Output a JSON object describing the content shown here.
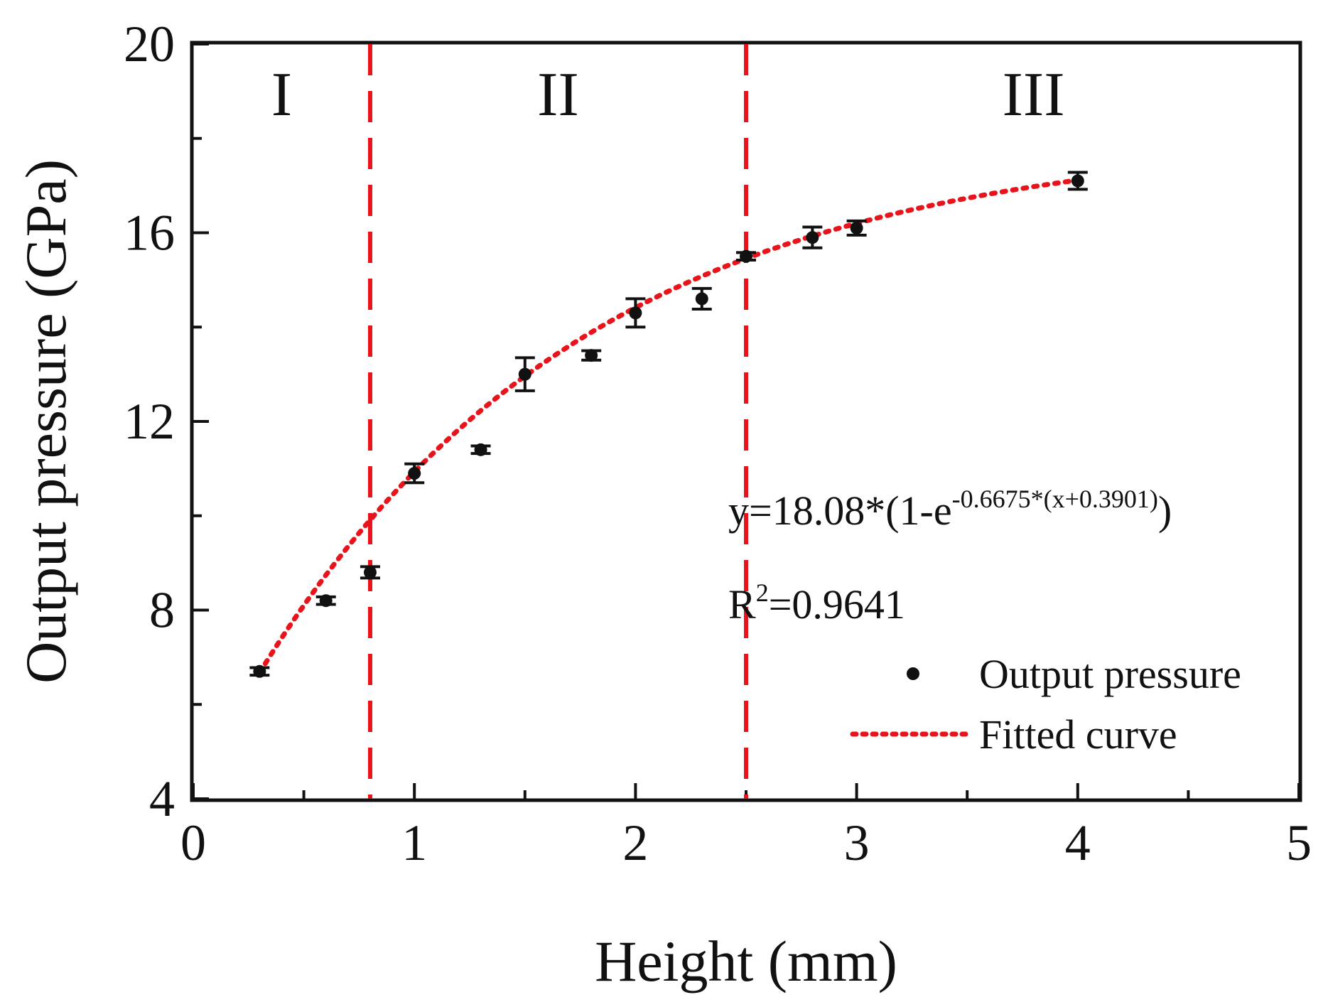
{
  "chart_data": {
    "type": "scatter",
    "xlabel": "Height (mm)",
    "ylabel": "Output pressure (GPa)",
    "xlim": [
      0,
      5
    ],
    "ylim": [
      4,
      20
    ],
    "xticks": [
      0,
      1,
      2,
      3,
      4,
      5
    ],
    "yticks": [
      4,
      8,
      12,
      16,
      20
    ],
    "xtick_labels": [
      "0",
      "1",
      "2",
      "3",
      "4",
      "5"
    ],
    "ytick_labels": [
      "4",
      "8",
      "12",
      "16",
      "20"
    ],
    "grid": false,
    "series": [
      {
        "name": "Output pressure",
        "kind": "points-with-error-bars",
        "color": "#111111",
        "x": [
          0.3,
          0.6,
          0.8,
          1.0,
          1.3,
          1.5,
          1.8,
          2.0,
          2.3,
          2.5,
          2.8,
          3.0,
          4.0
        ],
        "y": [
          6.7,
          8.2,
          8.8,
          10.9,
          11.4,
          13.0,
          13.4,
          14.3,
          14.6,
          15.5,
          15.9,
          16.1,
          17.1
        ],
        "err": [
          0.08,
          0.08,
          0.12,
          0.2,
          0.08,
          0.35,
          0.1,
          0.3,
          0.22,
          0.08,
          0.22,
          0.15,
          0.18
        ]
      },
      {
        "name": "Fitted curve",
        "kind": "dotted-line",
        "color": "#e8141b",
        "a": 18.08,
        "b": 0.6675,
        "c": 0.3901,
        "x_range": [
          0.3,
          4.0
        ]
      }
    ],
    "region_dividers": {
      "color": "#e8141b",
      "x": [
        0.8,
        2.5
      ]
    },
    "region_labels": [
      {
        "text": "I",
        "x": 0.4
      },
      {
        "text": "II",
        "x": 1.65
      },
      {
        "text": "III",
        "x": 3.8
      }
    ],
    "annotations": {
      "equation_prefix": "y=18.08*(1-e",
      "equation_exponent": "-0.6675*(x+0.3901)",
      "equation_suffix": ")",
      "r2_prefix": "R",
      "r2_superscript": "2",
      "r2_value": "=0.9641"
    },
    "legend": {
      "position": "lower-right",
      "entries": [
        {
          "label": "Output pressure",
          "marker": "dot"
        },
        {
          "label": "Fitted curve",
          "marker": "dotted-line"
        }
      ]
    }
  }
}
